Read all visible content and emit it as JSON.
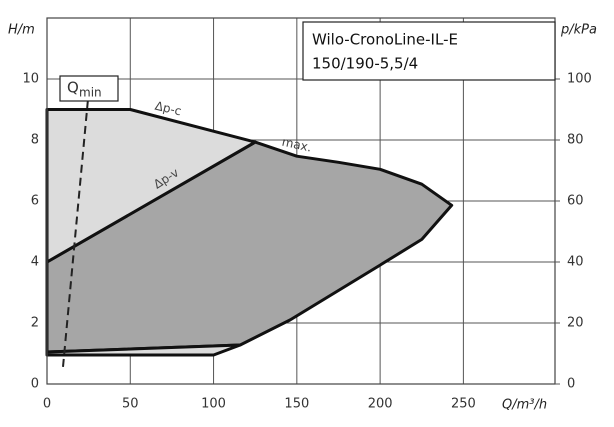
{
  "chart_data": {
    "type": "pump-curve",
    "title": "Wilo-CronoLine-IL-E",
    "subtitle": "150/190-5,5/4",
    "x_label": "Q/m³/h",
    "y_label": "H/m",
    "y2_label": "p/kPa",
    "xlim": [
      0,
      305
    ],
    "xticks": [
      0,
      50,
      100,
      150,
      200,
      250
    ],
    "ylim": [
      0,
      12
    ],
    "yticks": [
      0,
      2,
      4,
      6,
      8,
      10
    ],
    "y2lim": [
      0,
      120
    ],
    "y2ticks": [
      0,
      20,
      40,
      60,
      80,
      100
    ],
    "grid": true,
    "annotations": [
      "Δp-c",
      "Δp-v",
      "max."
    ],
    "qmin_label": {
      "text": "Q",
      "subscript": "min"
    },
    "series": [
      {
        "color": "#111111",
        "fill": "#a6a6a6",
        "style": "solid",
        "x": [
          0,
          125,
          150,
          175,
          200,
          225,
          243,
          225,
          200,
          146,
          116,
          0
        ],
        "values": [
          4,
          7.93,
          7.47,
          7.27,
          7.04,
          6.55,
          5.86,
          4.74,
          3.9,
          2.1,
          1.28,
          1.05
        ]
      },
      {
        "color": "#111111",
        "fill": "#dcdcdc",
        "style": "solid",
        "x": [
          0,
          50,
          125,
          0
        ],
        "values": [
          9,
          9,
          7.93,
          4
        ]
      },
      {
        "color": "#111111",
        "fill": "#dcdcdc",
        "style": "solid",
        "x": [
          0,
          100,
          116,
          0
        ],
        "values": [
          0.95,
          0.95,
          1.28,
          1.05
        ]
      },
      {
        "color": "#222222",
        "fill": "none",
        "style": "dashed",
        "x": [
          9.6,
          24.6
        ],
        "values": [
          0.56,
          9.34
        ]
      }
    ]
  }
}
